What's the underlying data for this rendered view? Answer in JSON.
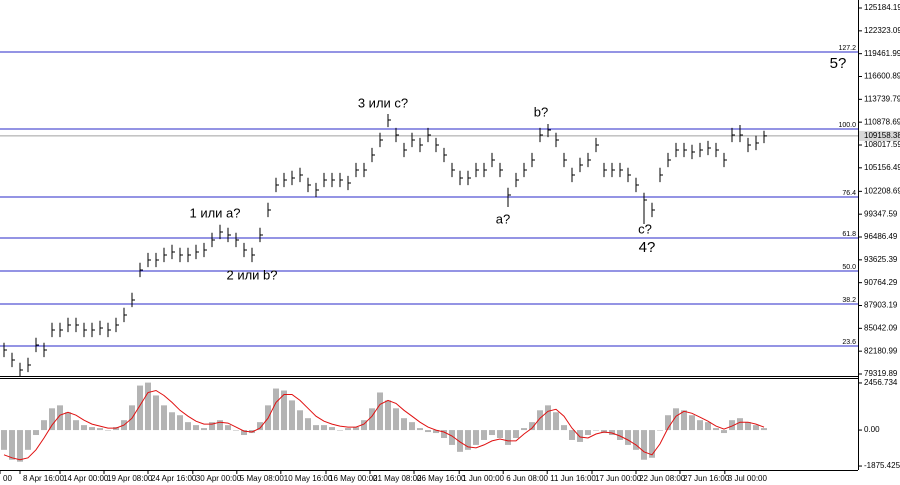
{
  "chart_data": [
    {
      "type": "ohlc",
      "color": "#000000",
      "xlim": [
        -0.5,
        106.75
      ],
      "ylim": [
        79069,
        126187
      ],
      "yticks": [
        125184.19,
        122323.09,
        119461.99,
        116600.89,
        113739.79,
        110878.69,
        108017.59,
        105156.49,
        102208.69,
        99347.59,
        96486.49,
        93625.39,
        90764.29,
        87903.19,
        85042.09,
        82180.99,
        79319.89
      ],
      "xticks": [
        {
          "value": -0.5,
          "label": "00"
        },
        {
          "value": 2,
          "label": "8 Apr 16:00"
        },
        {
          "value": 7,
          "label": "14 Apr 00:00"
        },
        {
          "value": 12.5,
          "label": "19 Apr 08:00"
        },
        {
          "value": 18,
          "label": "24 Apr 16:00"
        },
        {
          "value": 23.6,
          "label": "30 Apr 00:00"
        },
        {
          "value": 29.1,
          "label": "5 May 08:00"
        },
        {
          "value": 34.6,
          "label": "10 May 16:00"
        },
        {
          "value": 40.25,
          "label": "16 May 00:00"
        },
        {
          "value": 45.75,
          "label": "21 May 08:00"
        },
        {
          "value": 51.25,
          "label": "26 May 16:00"
        },
        {
          "value": 56.9,
          "label": "1 Jun 00:00"
        },
        {
          "value": 62.4,
          "label": "6 Jun 08:00"
        },
        {
          "value": 67.9,
          "label": "11 Jun 16:00"
        },
        {
          "value": 73.5,
          "label": "17 Jun 00:00"
        },
        {
          "value": 79,
          "label": "22 Jun 08:00"
        },
        {
          "value": 84.5,
          "label": "27 Jun 16:00"
        },
        {
          "value": 90.1,
          "label": "3 Jul 00:00"
        }
      ],
      "high": [
        83228,
        81975,
        80722,
        81349,
        83855,
        83228,
        85735,
        85735,
        86361,
        86361,
        85735,
        85735,
        85985,
        85735,
        86361,
        87614,
        89494,
        93253,
        94506,
        94506,
        95133,
        95509,
        95133,
        95133,
        95509,
        95759,
        97013,
        98015,
        97639,
        97013,
        95759,
        95133,
        97639,
        100772,
        103905,
        104531,
        104782,
        105158,
        103905,
        103278,
        104531,
        104531,
        104531,
        104155,
        105784,
        105784,
        107664,
        109544,
        111902,
        110170,
        108290,
        109544,
        108917,
        110170,
        108917,
        107664,
        105784,
        104782,
        104782,
        105784,
        105784,
        107037,
        105784,
        102652,
        104531,
        105784,
        107037,
        110170,
        110649,
        109544,
        107037,
        105158,
        106411,
        107037,
        108917,
        105784,
        105784,
        105784,
        105158,
        103905,
        102025,
        100772,
        105158,
        107037,
        108290,
        108290,
        108040,
        108290,
        108541,
        108290,
        107037,
        110170,
        110523,
        108917,
        109168,
        109800
      ],
      "low": [
        81428,
        80175,
        79069,
        79549,
        82055,
        81428,
        83935,
        83935,
        84561,
        84561,
        83935,
        83935,
        84185,
        83935,
        84561,
        85814,
        87694,
        91453,
        92706,
        92706,
        93333,
        93709,
        93333,
        93333,
        93709,
        93959,
        95213,
        96215,
        95839,
        95213,
        93959,
        93333,
        95839,
        98972,
        102105,
        102731,
        102982,
        103358,
        102105,
        101478,
        102731,
        102731,
        102731,
        102355,
        103984,
        103984,
        105864,
        107744,
        110250,
        108370,
        106490,
        107744,
        107117,
        108370,
        107117,
        105864,
        103984,
        102982,
        102982,
        103984,
        103984,
        105237,
        103984,
        100248,
        102731,
        103984,
        105237,
        108370,
        108997,
        107744,
        105237,
        103358,
        104611,
        105237,
        107117,
        103984,
        103984,
        103984,
        103358,
        102105,
        98118,
        98972,
        103358,
        105237,
        106490,
        106490,
        106240,
        106490,
        106741,
        106490,
        105237,
        108370,
        108370,
        107117,
        107368,
        108258
      ],
      "close": [
        82328,
        81075,
        79822,
        80449,
        82955,
        82328,
        84835,
        84835,
        85461,
        85461,
        84835,
        84835,
        85085,
        84835,
        85461,
        86714,
        88594,
        92353,
        93606,
        93606,
        94233,
        94609,
        94233,
        94233,
        94609,
        94859,
        96113,
        97115,
        96739,
        96113,
        94859,
        94233,
        96739,
        99872,
        103005,
        103631,
        103882,
        104258,
        103005,
        102378,
        103631,
        103631,
        103631,
        103255,
        104884,
        104884,
        106764,
        108644,
        111150,
        109270,
        107390,
        108644,
        108017,
        109270,
        108017,
        106764,
        104884,
        103882,
        103882,
        104884,
        104884,
        106137,
        104884,
        101752,
        103631,
        104884,
        106137,
        109270,
        109897,
        108644,
        106137,
        104258,
        105511,
        106137,
        108017,
        104884,
        104884,
        104884,
        104258,
        103005,
        101125,
        99872,
        104258,
        106137,
        107390,
        107390,
        107140,
        107390,
        107641,
        107390,
        106137,
        109270,
        109270,
        108017,
        108268,
        109158
      ],
      "level_color": "#2828c8",
      "levels": [
        {
          "label": "127.2",
          "value": 119671
        },
        {
          "label": "100.0",
          "value": 110022
        },
        {
          "label": "76.4",
          "value": 101500
        },
        {
          "label": "61.8",
          "value": 96363
        },
        {
          "label": "50.0",
          "value": 92228
        },
        {
          "label": "38.2",
          "value": 88093
        },
        {
          "label": "23.6",
          "value": 82830
        }
      ],
      "last_price": 109158.38,
      "annotations": [
        {
          "text": "3 или c?",
          "color": "#1a1ad0"
        },
        {
          "text": "1 или a?",
          "color": "#1a1ad0"
        },
        {
          "text": "2 или b?",
          "color": "#1a1ad0"
        },
        {
          "text": "b?",
          "color": "#e01818"
        },
        {
          "text": "a?",
          "color": "#e01818"
        },
        {
          "text": "c?",
          "color": "#e01818"
        },
        {
          "text": "4?",
          "color": "#1a1ad0"
        },
        {
          "text": "5?",
          "color": "#1a1ad0"
        }
      ]
    },
    {
      "type": "macd",
      "color": "#b4b4b4",
      "signal_color": "#e01010",
      "ylim": [
        -2082,
        2663
      ],
      "yticks": [
        2456.734,
        {
          "value": 0,
          "label": "0.00"
        },
        -1875.425
      ],
      "histogram": [
        -1031,
        -1547,
        -1650,
        -1031,
        -258,
        516,
        1135,
        1289,
        928,
        516,
        258,
        155,
        103,
        0,
        155,
        516,
        1289,
        2321,
        2475,
        1805,
        1289,
        928,
        774,
        413,
        258,
        103,
        413,
        516,
        258,
        0,
        -258,
        -155,
        413,
        1289,
        2166,
        2063,
        1547,
        1031,
        619,
        258,
        258,
        155,
        0,
        103,
        155,
        516,
        1135,
        1960,
        1547,
        1135,
        619,
        413,
        103,
        -103,
        -155,
        -413,
        -774,
        -1135,
        -1031,
        -774,
        -516,
        -258,
        -413,
        -774,
        -413,
        103,
        413,
        1031,
        1289,
        928,
        258,
        -516,
        -619,
        -258,
        0,
        -155,
        -258,
        -516,
        -774,
        -1031,
        -1547,
        -1444,
        0,
        774,
        1135,
        1031,
        774,
        516,
        413,
        103,
        -155,
        516,
        619,
        413,
        258,
        103
      ],
      "signal": [
        -1289,
        -1444,
        -1547,
        -1444,
        -1031,
        -413,
        258,
        774,
        928,
        774,
        516,
        309,
        206,
        103,
        103,
        258,
        619,
        1289,
        1960,
        2063,
        1805,
        1444,
        1031,
        722,
        464,
        309,
        309,
        413,
        361,
        155,
        -52,
        -103,
        103,
        619,
        1444,
        1857,
        1857,
        1547,
        1135,
        722,
        464,
        309,
        206,
        155,
        155,
        309,
        722,
        1341,
        1547,
        1392,
        1031,
        722,
        413,
        155,
        0,
        -103,
        -309,
        -619,
        -877,
        -928,
        -774,
        -567,
        -464,
        -567,
        -567,
        -206,
        103,
        619,
        980,
        1083,
        722,
        103,
        -361,
        -413,
        -206,
        -103,
        -155,
        -309,
        -516,
        -774,
        -1135,
        -1289,
        -722,
        103,
        722,
        980,
        877,
        670,
        464,
        206,
        52,
        206,
        413,
        413,
        309,
        155
      ]
    }
  ]
}
